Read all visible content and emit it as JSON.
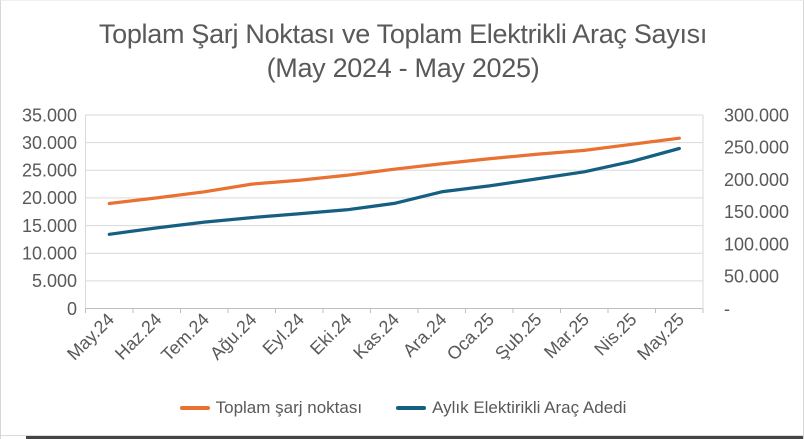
{
  "chart_data": {
    "type": "line",
    "title": {
      "line1": "Toplam Şarj Noktası ve Toplam Elektrikli Araç Sayısı",
      "line2": "(May 2024 - May 2025)"
    },
    "categories": [
      "May.24",
      "Haz.24",
      "Tem.24",
      "Ağu.24",
      "Eyl.24",
      "Eki.24",
      "Kas.24",
      "Ara.24",
      "Oca.25",
      "Şub.25",
      "Mar.25",
      "Nis.25",
      "May.25"
    ],
    "series": [
      {
        "name": "Toplam şarj noktası",
        "axis": "left",
        "color": "#E97132",
        "values": [
          19000,
          20000,
          21100,
          22500,
          23200,
          24100,
          25200,
          26200,
          27100,
          27900,
          28600,
          29700,
          30800
        ]
      },
      {
        "name": "Aylık Elektirikli Araç Adedi",
        "axis": "right",
        "color": "#156082",
        "values": [
          115000,
          125000,
          134000,
          141000,
          147000,
          153000,
          163000,
          181000,
          190000,
          201000,
          212000,
          228000,
          248000
        ]
      }
    ],
    "left_axis": {
      "min": 0,
      "max": 35000,
      "step": 5000,
      "tick_labels": [
        "0",
        "5.000",
        "10.000",
        "15.000",
        "20.000",
        "25.000",
        "30.000",
        "35.000"
      ]
    },
    "right_axis": {
      "min": 0,
      "max": 300000,
      "step": 50000,
      "tick_labels": [
        "-",
        "50.000",
        "100.000",
        "150.000",
        "200.000",
        "250.000",
        "300.000"
      ]
    },
    "legend_position": "bottom",
    "grid": true
  },
  "colors": {
    "text": "#595959",
    "gridline": "#D9D9D9",
    "axis_line": "#BFBFBF",
    "series_orange": "#E97132",
    "series_teal": "#156082"
  }
}
